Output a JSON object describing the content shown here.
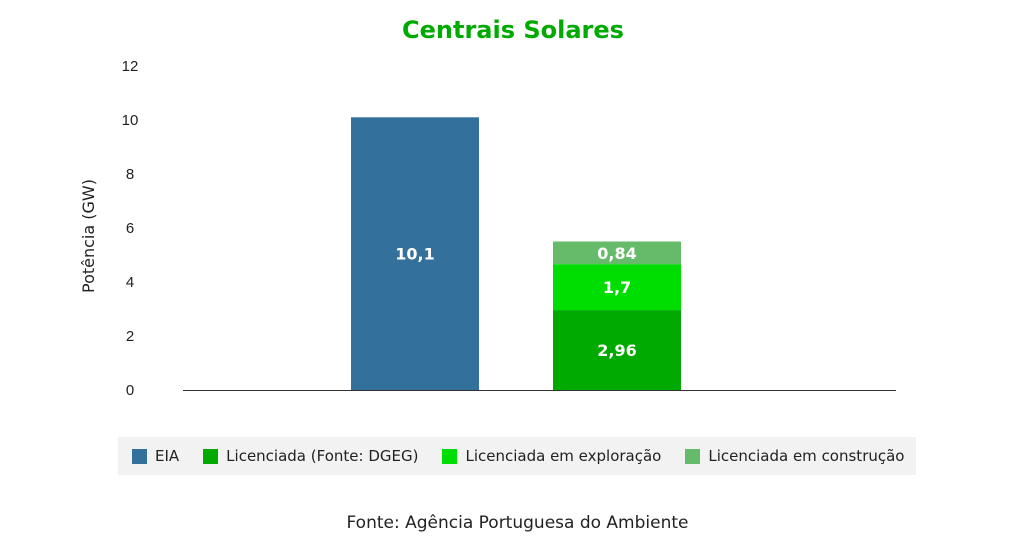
{
  "chart_data": {
    "type": "bar",
    "title": "Centrais Solares",
    "ylabel": "Potência (GW)",
    "ylim": [
      0,
      12
    ],
    "yticks": [
      0,
      2,
      4,
      6,
      8,
      10,
      12
    ],
    "grid": false,
    "legend_position": "bottom",
    "source": "Fonte: Agência Portuguesa do Ambiente",
    "bars": [
      {
        "stack": [
          {
            "series": "EIA",
            "value": 10.1,
            "label": "10,1"
          }
        ]
      },
      {
        "stack": [
          {
            "series": "Licenciada (Fonte: DGEG)",
            "value": 2.96,
            "label": "2,96"
          },
          {
            "series": "Licenciada em exploração",
            "value": 1.7,
            "label": "1,7"
          },
          {
            "series": "Licenciada em construção",
            "value": 0.84,
            "label": "0,84"
          }
        ]
      }
    ],
    "series": [
      {
        "name": "EIA",
        "color": "#33709c"
      },
      {
        "name": "Licenciada (Fonte: DGEG)",
        "color": "#00aa00"
      },
      {
        "name": "Licenciada em exploração",
        "color": "#00dd00"
      },
      {
        "name": "Licenciada em construção",
        "color": "#66bb6a"
      }
    ],
    "title_color": "#00aa00"
  }
}
